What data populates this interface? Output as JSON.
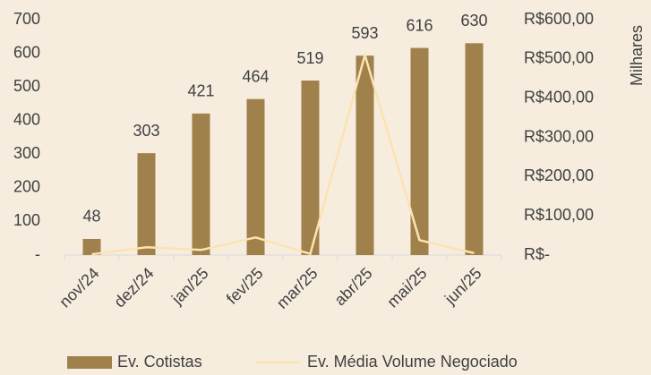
{
  "chart_data": {
    "type": "bar_line",
    "categories": [
      "nov/24",
      "dez/24",
      "jan/25",
      "fev/25",
      "mar/25",
      "abr/25",
      "mai/25",
      "jun/25"
    ],
    "series": [
      {
        "name": "Ev. Cotistas",
        "type": "bar",
        "color": "#a0814b",
        "values": [
          48,
          303,
          421,
          464,
          519,
          593,
          616,
          630
        ]
      },
      {
        "name": "Ev. Média Volume Negociado",
        "type": "line",
        "axis": "y2",
        "color": "#fde3b2",
        "values": [
          2,
          20,
          13,
          45,
          3,
          510,
          38,
          5
        ]
      }
    ],
    "ylim": [
      0,
      700
    ],
    "yticks": [
      {
        "value": 0,
        "label": "-"
      },
      100,
      200,
      300,
      400,
      500,
      600,
      700
    ],
    "y2lim": [
      0,
      600
    ],
    "y2ticks": [
      {
        "value": 0,
        "label": "R$-"
      },
      {
        "value": 100,
        "label": "R$100,00"
      },
      {
        "value": 200,
        "label": "R$200,00"
      },
      {
        "value": 300,
        "label": "R$300,00"
      },
      {
        "value": 400,
        "label": "R$400,00"
      },
      {
        "value": 500,
        "label": "R$500,00"
      },
      {
        "value": 600,
        "label": "R$600,00"
      }
    ],
    "y2label": "Milhares",
    "legend": "bottom"
  }
}
